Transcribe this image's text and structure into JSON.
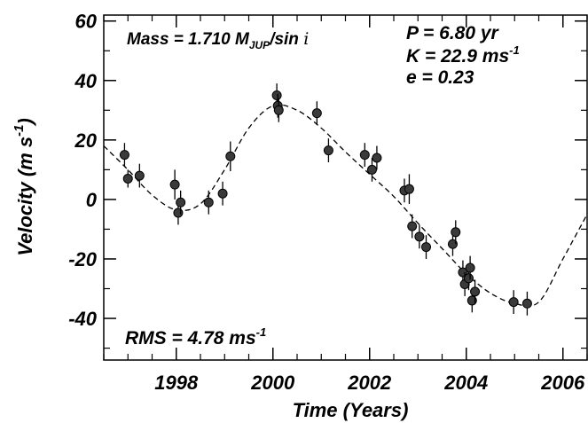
{
  "chart_data": {
    "type": "scatter",
    "xlabel": "Time  (Years)",
    "ylabel": "Velocity  (m  s",
    "ylabel_sup": "-1",
    "ylabel_tail": ")",
    "xlim": [
      1996.5,
      2006.5
    ],
    "ylim": [
      -54,
      62
    ],
    "x_ticks": [
      1998,
      2000,
      2002,
      2004,
      2006
    ],
    "x_tick_labels": [
      "1998",
      "2000",
      "2002",
      "2004",
      "2006"
    ],
    "y_ticks": [
      60,
      40,
      20,
      0,
      -20,
      -40
    ],
    "y_tick_labels": [
      "60",
      "40",
      "20",
      "0",
      "-20",
      "-40"
    ],
    "annotations": {
      "mass_prefix": "Mass = 1.710  M",
      "mass_sub": "JUP",
      "mass_suffix": "/sin ",
      "mass_i": "i",
      "period": "P = 6.80 yr",
      "k_prefix": "K = 22.9 ms",
      "k_sup": "-1",
      "ecc": "e = 0.23",
      "rms_prefix": "RMS = 4.78 ms",
      "rms_sup": "-1"
    },
    "series": [
      {
        "points": [
          {
            "x": 1996.93,
            "y": 15.0,
            "err": 4
          },
          {
            "x": 1997.0,
            "y": 7.0,
            "err": 3
          },
          {
            "x": 1997.24,
            "y": 8.0,
            "err": 4
          },
          {
            "x": 1997.97,
            "y": 5.0,
            "err": 5
          },
          {
            "x": 1998.04,
            "y": -4.5,
            "err": 4
          },
          {
            "x": 1998.09,
            "y": -1.0,
            "err": 4
          },
          {
            "x": 1998.67,
            "y": -1.0,
            "err": 4
          },
          {
            "x": 1998.96,
            "y": 2.0,
            "err": 4
          },
          {
            "x": 1999.12,
            "y": 14.5,
            "err": 5
          },
          {
            "x": 2000.08,
            "y": 35.0,
            "err": 4
          },
          {
            "x": 2000.1,
            "y": 31.5,
            "err": 4
          },
          {
            "x": 2000.12,
            "y": 30.0,
            "err": 4
          },
          {
            "x": 2000.91,
            "y": 29.0,
            "err": 4
          },
          {
            "x": 2001.15,
            "y": 16.5,
            "err": 4
          },
          {
            "x": 2001.9,
            "y": 15.0,
            "err": 4
          },
          {
            "x": 2002.05,
            "y": 10.0,
            "err": 4
          },
          {
            "x": 2002.15,
            "y": 14.0,
            "err": 4
          },
          {
            "x": 2002.72,
            "y": 3.0,
            "err": 4
          },
          {
            "x": 2002.82,
            "y": 3.5,
            "err": 5
          },
          {
            "x": 2002.88,
            "y": -9.0,
            "err": 4
          },
          {
            "x": 2003.03,
            "y": -12.5,
            "err": 4
          },
          {
            "x": 2003.17,
            "y": -16.0,
            "err": 4
          },
          {
            "x": 2003.72,
            "y": -15.0,
            "err": 4
          },
          {
            "x": 2003.78,
            "y": -11.0,
            "err": 4
          },
          {
            "x": 2003.93,
            "y": -24.5,
            "err": 4
          },
          {
            "x": 2003.97,
            "y": -28.5,
            "err": 4
          },
          {
            "x": 2004.05,
            "y": -26.5,
            "err": 4
          },
          {
            "x": 2004.08,
            "y": -23.0,
            "err": 4
          },
          {
            "x": 2004.12,
            "y": -34.0,
            "err": 4
          },
          {
            "x": 2004.18,
            "y": -31.0,
            "err": 4
          },
          {
            "x": 2004.98,
            "y": -34.5,
            "err": 4
          },
          {
            "x": 2005.26,
            "y": -35.0,
            "err": 4
          }
        ]
      }
    ],
    "fit": {
      "period_yr": 6.8,
      "k": 22.9,
      "e": 0.23,
      "curve": [
        [
          1996.5,
          18.0
        ],
        [
          1997.0,
          10.0
        ],
        [
          1997.5,
          1.5
        ],
        [
          1998.0,
          -3.5
        ],
        [
          1998.5,
          -1.5
        ],
        [
          1999.0,
          10.0
        ],
        [
          1999.5,
          24.0
        ],
        [
          2000.0,
          31.5
        ],
        [
          2000.5,
          30.0
        ],
        [
          2001.0,
          24.0
        ],
        [
          2001.5,
          16.0
        ],
        [
          2002.0,
          8.5
        ],
        [
          2002.5,
          1.0
        ],
        [
          2003.0,
          -8.0
        ],
        [
          2003.5,
          -16.5
        ],
        [
          2004.0,
          -25.0
        ],
        [
          2004.5,
          -31.5
        ],
        [
          2005.0,
          -35.0
        ],
        [
          2005.5,
          -34.5
        ],
        [
          2006.0,
          -20.0
        ],
        [
          2006.5,
          -5.0
        ]
      ]
    },
    "colors": {
      "marker": "#3a3a3a",
      "line": "#000000"
    }
  }
}
